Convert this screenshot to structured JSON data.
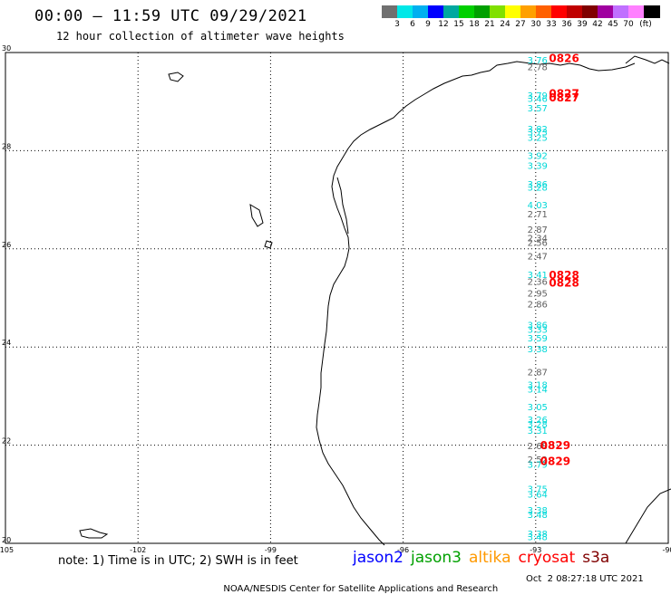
{
  "title": "00:00 – 11:59 UTC 09/29/2021",
  "subtitle": "12 hour collection of altimeter wave heights",
  "colorbar": {
    "colors": [
      "#707070",
      "#00e8e8",
      "#00b0f0",
      "#0000ff",
      "#00a8a0",
      "#00d000",
      "#00a000",
      "#80e000",
      "#ffff00",
      "#ffa000",
      "#ff6000",
      "#ff0000",
      "#c00000",
      "#800000",
      "#a000a0",
      "#c070ff",
      "#ff80ff",
      "#000000"
    ],
    "labels": [
      "3",
      "6",
      "9",
      "12",
      "15",
      "18",
      "21",
      "24",
      "27",
      "30",
      "33",
      "36",
      "39",
      "42",
      "45",
      "70",
      "(ft)"
    ],
    "unit": "(ft)"
  },
  "axes": {
    "lon_ticks": [
      "-105",
      "-102",
      "-99",
      "-96",
      "-93",
      "-90"
    ],
    "lat_ticks": [
      "20",
      "22",
      "24",
      "26",
      "28",
      "30"
    ]
  },
  "series_colors": {
    "jason3": "#00d8d8",
    "cryosat": "#ff0000",
    "s3a": "#606060"
  },
  "track_values": [
    {
      "t": "3.76",
      "lat": 29.78,
      "lon": -93.0,
      "c": "jason3"
    },
    {
      "t": "2.78",
      "lat": 29.64,
      "lon": -93.0,
      "c": "s3a"
    },
    {
      "t": "3.79",
      "lat": 29.06,
      "lon": -93.0,
      "c": "jason3"
    },
    {
      "t": "3.46",
      "lat": 28.99,
      "lon": -93.0,
      "c": "jason3"
    },
    {
      "t": "3.57",
      "lat": 28.8,
      "lon": -93.0,
      "c": "jason3"
    },
    {
      "t": "3.82",
      "lat": 28.38,
      "lon": -93.0,
      "c": "jason3"
    },
    {
      "t": "3.73",
      "lat": 28.31,
      "lon": -93.0,
      "c": "jason3"
    },
    {
      "t": "3.25",
      "lat": 28.2,
      "lon": -93.0,
      "c": "jason3"
    },
    {
      "t": "3.92",
      "lat": 27.83,
      "lon": -93.0,
      "c": "jason3"
    },
    {
      "t": "3.39",
      "lat": 27.63,
      "lon": -93.0,
      "c": "jason3"
    },
    {
      "t": "3.86",
      "lat": 27.25,
      "lon": -93.0,
      "c": "jason3"
    },
    {
      "t": "3.28",
      "lat": 27.19,
      "lon": -93.0,
      "c": "jason3"
    },
    {
      "t": "4.03",
      "lat": 26.83,
      "lon": -93.0,
      "c": "jason3"
    },
    {
      "t": "2.71",
      "lat": 26.64,
      "lon": -93.0,
      "c": "s3a"
    },
    {
      "t": "2.87",
      "lat": 26.33,
      "lon": -93.0,
      "c": "s3a"
    },
    {
      "t": "2.34",
      "lat": 26.15,
      "lon": -93.0,
      "c": "s3a"
    },
    {
      "t": "2.56",
      "lat": 26.06,
      "lon": -93.0,
      "c": "s3a"
    },
    {
      "t": "2.47",
      "lat": 25.78,
      "lon": -93.0,
      "c": "s3a"
    },
    {
      "t": "3.41",
      "lat": 25.41,
      "lon": -93.0,
      "c": "jason3"
    },
    {
      "t": "2.36",
      "lat": 25.27,
      "lon": -93.0,
      "c": "s3a"
    },
    {
      "t": "2.95",
      "lat": 25.03,
      "lon": -93.0,
      "c": "s3a"
    },
    {
      "t": "2.86",
      "lat": 24.81,
      "lon": -93.0,
      "c": "s3a"
    },
    {
      "t": "3.86",
      "lat": 24.38,
      "lon": -93.0,
      "c": "jason3"
    },
    {
      "t": "3.33",
      "lat": 24.29,
      "lon": -93.0,
      "c": "jason3"
    },
    {
      "t": "3.59",
      "lat": 24.11,
      "lon": -93.0,
      "c": "jason3"
    },
    {
      "t": "3.38",
      "lat": 23.89,
      "lon": -93.0,
      "c": "jason3"
    },
    {
      "t": "2.87",
      "lat": 23.42,
      "lon": -93.0,
      "c": "s3a"
    },
    {
      "t": "3.18",
      "lat": 23.16,
      "lon": -93.0,
      "c": "jason3"
    },
    {
      "t": "3.14",
      "lat": 23.07,
      "lon": -93.0,
      "c": "jason3"
    },
    {
      "t": "3.05",
      "lat": 22.71,
      "lon": -93.0,
      "c": "jason3"
    },
    {
      "t": "3.26",
      "lat": 22.45,
      "lon": -93.0,
      "c": "jason3"
    },
    {
      "t": "3.28",
      "lat": 22.36,
      "lon": -93.0,
      "c": "jason3"
    },
    {
      "t": "3.31",
      "lat": 22.23,
      "lon": -93.0,
      "c": "jason3"
    },
    {
      "t": "2.68",
      "lat": 21.92,
      "lon": -93.0,
      "c": "s3a"
    },
    {
      "t": "2.52",
      "lat": 21.64,
      "lon": -93.0,
      "c": "s3a"
    },
    {
      "t": "3.79",
      "lat": 21.54,
      "lon": -93.0,
      "c": "jason3"
    },
    {
      "t": "3.75",
      "lat": 21.04,
      "lon": -93.0,
      "c": "jason3"
    },
    {
      "t": "3.64",
      "lat": 20.93,
      "lon": -93.0,
      "c": "jason3"
    },
    {
      "t": "3.38",
      "lat": 20.61,
      "lon": -93.0,
      "c": "jason3"
    },
    {
      "t": "3.48",
      "lat": 20.52,
      "lon": -93.0,
      "c": "jason3"
    },
    {
      "t": "3.38",
      "lat": 20.13,
      "lon": -93.0,
      "c": "jason3"
    },
    {
      "t": "3.48",
      "lat": 20.06,
      "lon": -93.0,
      "c": "jason3"
    }
  ],
  "time_labels": [
    {
      "t": "0826",
      "lat": 29.81,
      "lon": -92.7
    },
    {
      "t": "0827",
      "lat": 29.09,
      "lon": -92.7
    },
    {
      "t": "0827",
      "lat": 29.0,
      "lon": -92.7
    },
    {
      "t": "0828",
      "lat": 25.39,
      "lon": -92.7
    },
    {
      "t": "0828",
      "lat": 25.23,
      "lon": -92.7
    },
    {
      "t": "0829",
      "lat": 21.92,
      "lon": -92.9
    },
    {
      "t": "0829",
      "lat": 21.6,
      "lon": -92.9
    }
  ],
  "note": "note: 1) Time is in UTC; 2) SWH is in feet",
  "legend": [
    {
      "label": "jason2",
      "color": "#0000ff"
    },
    {
      "label": "jason3",
      "color": "#00a000"
    },
    {
      "label": "altika",
      "color": "#ff9900"
    },
    {
      "label": "cryosat",
      "color": "#ff0000"
    },
    {
      "label": "s3a",
      "color": "#800000"
    }
  ],
  "footer": {
    "credit": "NOAA/NESDIS Center for Satellite Applications and Research",
    "date": "Oct  2 08:27:18 UTC 2021"
  }
}
